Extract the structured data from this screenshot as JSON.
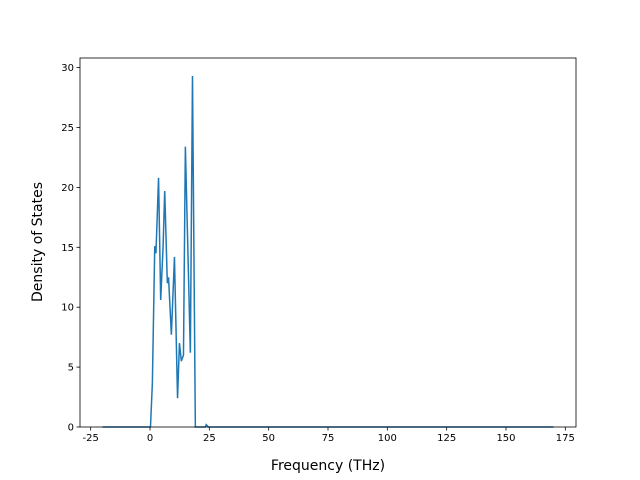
{
  "chart_data": {
    "type": "line",
    "x_label": "Frequency (THz)",
    "y_label": "Density of States",
    "x": [
      -20,
      -10,
      -1,
      0,
      0.2,
      1,
      2,
      2.5,
      3.6,
      4.5,
      5.5,
      6.2,
      7.3,
      7.8,
      9.0,
      10.3,
      11.6,
      12.4,
      13.2,
      14.1,
      14.9,
      17.0,
      17.9,
      19.1,
      23.3,
      23.7,
      24.6,
      50,
      100,
      170
    ],
    "series": [
      {
        "name": "DOS",
        "color": "#1f77b4",
        "values": [
          0,
          0,
          0,
          0,
          0,
          3.7,
          15.1,
          14.5,
          20.8,
          10.6,
          15.0,
          19.7,
          12.0,
          12.5,
          7.7,
          14.2,
          2.4,
          7.0,
          5.5,
          6.0,
          23.4,
          6.2,
          29.3,
          0,
          0,
          0.2,
          0,
          0,
          0,
          0
        ]
      }
    ],
    "xlim": [
      -29.5,
      179.5
    ],
    "ylim": [
      0,
      30.8
    ],
    "xticks": [
      -25,
      0,
      25,
      50,
      75,
      100,
      125,
      150,
      175
    ],
    "yticks": [
      0,
      5,
      10,
      15,
      20,
      25,
      30
    ]
  }
}
